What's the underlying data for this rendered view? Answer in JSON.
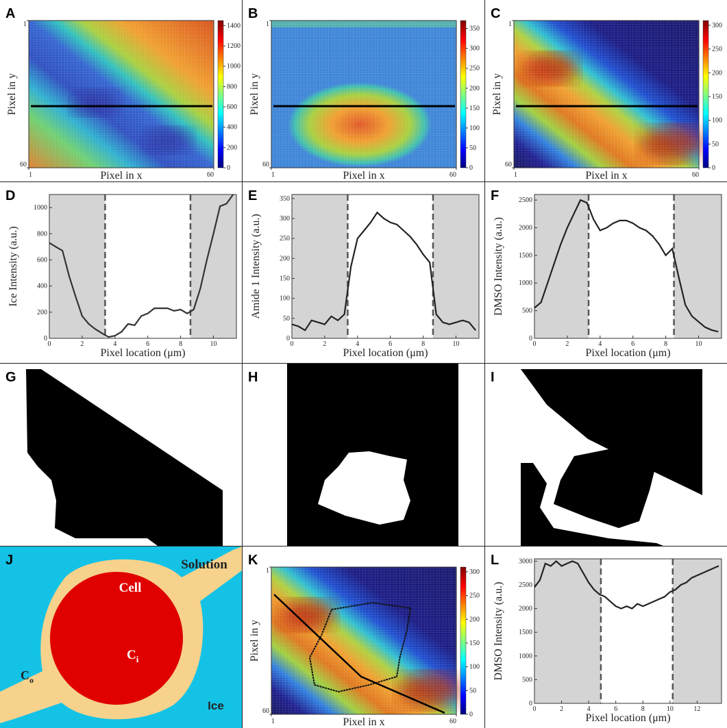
{
  "chart_data": [
    {
      "type": "heatmap",
      "panel_label": "A",
      "xlabel": "Pixel in x",
      "ylabel": "Pixel in y",
      "xlim": [
        1,
        60
      ],
      "ylim": [
        1,
        60
      ],
      "xticks": [
        1,
        60
      ],
      "yticks": [
        1,
        60
      ],
      "y_inverted": true,
      "colorbar_lim": [
        0,
        1450
      ],
      "colorbar_ticks": [
        0,
        200,
        400,
        600,
        800,
        1000,
        1200,
        1400
      ]
    },
    {
      "type": "heatmap",
      "panel_label": "B",
      "xlabel": "Pixel in x",
      "ylabel": "Pixel in y",
      "xlim": [
        1,
        60
      ],
      "ylim": [
        1,
        60
      ],
      "xticks": [
        1,
        60
      ],
      "yticks": [
        1,
        60
      ],
      "y_inverted": true,
      "colorbar_lim": [
        0,
        370
      ],
      "colorbar_ticks": [
        0,
        50,
        100,
        150,
        200,
        250,
        300,
        350
      ]
    },
    {
      "type": "heatmap",
      "panel_label": "C",
      "xlabel": "Pixel in x",
      "ylabel": "Pixel in y",
      "xlim": [
        1,
        60
      ],
      "ylim": [
        1,
        60
      ],
      "xticks": [
        1,
        60
      ],
      "yticks": [
        1,
        60
      ],
      "y_inverted": true,
      "colorbar_lim": [
        0,
        310
      ],
      "colorbar_ticks": [
        0,
        50,
        100,
        150,
        200,
        250,
        300
      ]
    },
    {
      "type": "line",
      "panel_label": "D",
      "xlabel": "Pixel location (μm)",
      "ylabel": "Ice Intensity (a.u.)",
      "xlim": [
        0,
        11.4
      ],
      "ylim": [
        0,
        1100
      ],
      "xticks": [
        0,
        2,
        4,
        6,
        8,
        10
      ],
      "yticks": [
        0,
        200,
        400,
        600,
        800,
        1000
      ],
      "boundaries": [
        3.4,
        8.6
      ],
      "color": "#333333",
      "x": [
        0,
        0.4,
        0.8,
        1.2,
        1.6,
        2.0,
        2.4,
        2.8,
        3.2,
        3.6,
        4.0,
        4.4,
        4.8,
        5.2,
        5.6,
        6.0,
        6.4,
        6.8,
        7.2,
        7.6,
        8.0,
        8.4,
        8.8,
        9.2,
        9.6,
        10.0,
        10.4,
        10.8,
        11.2
      ],
      "values": [
        730,
        700,
        670,
        480,
        320,
        170,
        110,
        70,
        40,
        10,
        20,
        50,
        110,
        100,
        170,
        190,
        230,
        230,
        230,
        210,
        220,
        190,
        220,
        380,
        600,
        800,
        1010,
        1030,
        1100
      ]
    },
    {
      "type": "line",
      "panel_label": "E",
      "xlabel": "Pixel location (μm)",
      "ylabel": "Amide 1 Intensity (a.u.)",
      "xlim": [
        0,
        11.4
      ],
      "ylim": [
        0,
        360
      ],
      "xticks": [
        0,
        2,
        4,
        6,
        8,
        10
      ],
      "yticks": [
        0,
        50,
        100,
        150,
        200,
        250,
        300,
        350
      ],
      "boundaries": [
        3.4,
        8.6
      ],
      "color": "#222222",
      "x": [
        0,
        0.4,
        0.8,
        1.2,
        1.6,
        2.0,
        2.4,
        2.8,
        3.2,
        3.6,
        4.0,
        4.4,
        4.8,
        5.2,
        5.6,
        6.0,
        6.4,
        6.8,
        7.2,
        7.6,
        8.0,
        8.4,
        8.8,
        9.2,
        9.6,
        10.0,
        10.4,
        10.8,
        11.2
      ],
      "values": [
        35,
        30,
        20,
        45,
        40,
        35,
        55,
        45,
        60,
        180,
        250,
        270,
        290,
        315,
        300,
        290,
        285,
        270,
        255,
        235,
        210,
        190,
        60,
        40,
        35,
        40,
        45,
        40,
        20
      ]
    },
    {
      "type": "line",
      "panel_label": "F",
      "xlabel": "Pixel location (μm)",
      "ylabel": "DMSO Intensity (a.u.)",
      "xlim": [
        0,
        11.4
      ],
      "ylim": [
        0,
        2600
      ],
      "xticks": [
        0,
        2,
        4,
        6,
        8,
        10
      ],
      "yticks": [
        0,
        500,
        1000,
        1500,
        2000,
        2500
      ],
      "boundaries": [
        3.3,
        8.5
      ],
      "color": "#222222",
      "x": [
        0,
        0.4,
        0.8,
        1.2,
        1.6,
        2.0,
        2.4,
        2.8,
        3.2,
        3.6,
        4.0,
        4.4,
        4.8,
        5.2,
        5.6,
        6.0,
        6.4,
        6.8,
        7.2,
        7.6,
        8.0,
        8.4,
        8.8,
        9.2,
        9.6,
        10.0,
        10.4,
        10.8,
        11.2
      ],
      "values": [
        550,
        650,
        1000,
        1350,
        1700,
        2000,
        2250,
        2500,
        2450,
        2150,
        1950,
        2000,
        2080,
        2130,
        2130,
        2080,
        2000,
        1950,
        1850,
        1700,
        1500,
        1620,
        1100,
        600,
        400,
        300,
        200,
        150,
        120
      ]
    },
    {
      "type": "mask",
      "panel_label": "G"
    },
    {
      "type": "mask",
      "panel_label": "H"
    },
    {
      "type": "mask",
      "panel_label": "I"
    },
    {
      "type": "diagram",
      "panel_label": "J",
      "labels": {
        "solution": "Solution",
        "cell": "Cell",
        "ice": "Ice",
        "c_out": {
          "main": "C",
          "sub": "o"
        },
        "c_in": {
          "main": "C",
          "sub": "i"
        }
      }
    },
    {
      "type": "heatmap",
      "panel_label": "K",
      "xlabel": "Pixel in x",
      "ylabel": "Pixel in y",
      "xlim": [
        1,
        60
      ],
      "ylim": [
        1,
        60
      ],
      "xticks": [
        1,
        60
      ],
      "yticks": [
        1,
        60
      ],
      "y_inverted": true,
      "colorbar_lim": [
        0,
        310
      ],
      "colorbar_ticks": [
        0,
        50,
        100,
        150,
        200,
        250,
        300
      ]
    },
    {
      "type": "line",
      "panel_label": "L",
      "xlabel": "Pixel location (μm)",
      "ylabel": "DMSO Intensity (a.u.)",
      "xlim": [
        0,
        13.8
      ],
      "ylim": [
        0,
        3050
      ],
      "xticks": [
        0,
        2,
        4,
        6,
        8,
        10,
        12
      ],
      "yticks": [
        0,
        500,
        1000,
        1500,
        2000,
        2500,
        3000
      ],
      "boundaries": [
        4.9,
        10.2
      ],
      "color": "#222222",
      "x": [
        0,
        0.4,
        0.8,
        1.2,
        1.6,
        2.0,
        2.4,
        2.8,
        3.2,
        3.6,
        4.0,
        4.4,
        4.8,
        5.2,
        5.6,
        6.0,
        6.4,
        6.8,
        7.2,
        7.6,
        8.0,
        8.4,
        8.8,
        9.2,
        9.6,
        10.0,
        10.4,
        10.8,
        11.2,
        11.6,
        12.0,
        12.4,
        12.8,
        13.2,
        13.6
      ],
      "values": [
        2450,
        2600,
        2950,
        2900,
        3000,
        2900,
        2950,
        3000,
        2950,
        2750,
        2550,
        2400,
        2300,
        2250,
        2150,
        2050,
        2000,
        2050,
        2000,
        2100,
        2050,
        2100,
        2150,
        2200,
        2250,
        2350,
        2400,
        2500,
        2550,
        2650,
        2700,
        2750,
        2800,
        2850,
        2900
      ]
    }
  ]
}
